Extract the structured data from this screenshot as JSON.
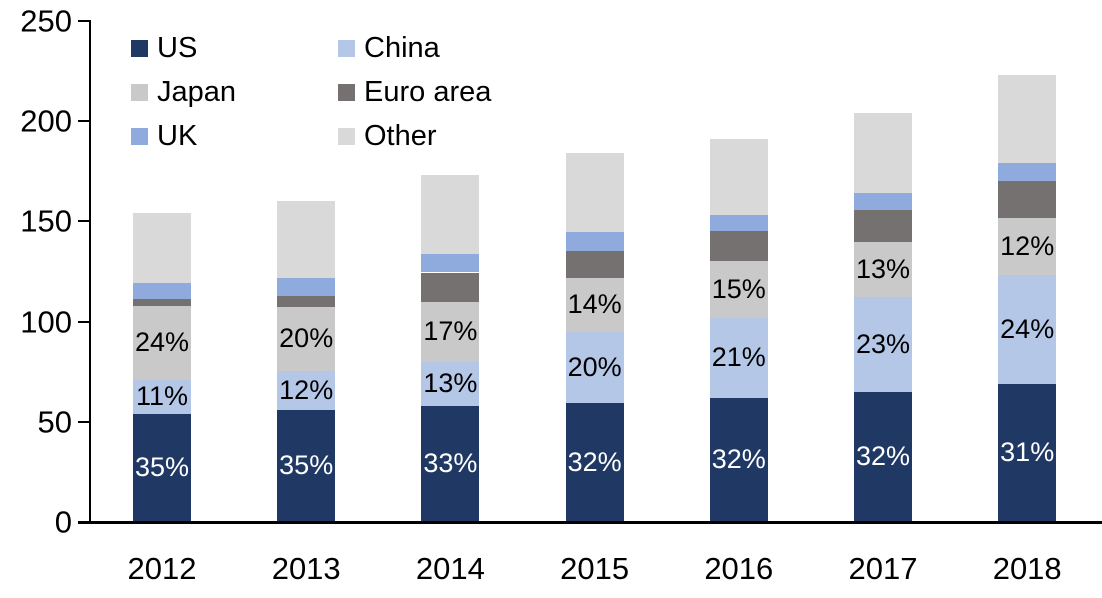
{
  "chart_data": {
    "type": "bar",
    "stacked": true,
    "title": "",
    "xlabel": "",
    "ylabel": "",
    "x": [
      "2012",
      "2013",
      "2014",
      "2015",
      "2016",
      "2017",
      "2018"
    ],
    "series": [
      {
        "name": "US",
        "color": "#1F3864",
        "values": [
          54,
          56,
          58,
          59.5,
          62,
          65,
          69
        ],
        "labels": [
          "35%",
          "35%",
          "33%",
          "32%",
          "32%",
          "32%",
          "31%"
        ],
        "label_color": "#FFFFFF"
      },
      {
        "name": "China",
        "color": "#B4C7E7",
        "values": [
          17,
          19.5,
          22,
          35.5,
          40,
          47.5,
          54.5
        ],
        "labels": [
          "11%",
          "12%",
          "13%",
          "20%",
          "21%",
          "23%",
          "24%"
        ],
        "label_color": "#000000"
      },
      {
        "name": "Japan",
        "color": "#C9C9C9",
        "values": [
          37,
          32,
          30,
          27,
          28,
          27,
          28
        ],
        "labels": [
          "24%",
          "20%",
          "17%",
          "14%",
          "15%",
          "13%",
          "12%"
        ],
        "label_color": "#000000"
      },
      {
        "name": "Euro area",
        "color": "#767171",
        "values": [
          3.5,
          5.5,
          14.5,
          13,
          15,
          16,
          18.5
        ]
      },
      {
        "name": "UK",
        "color": "#8FAADC",
        "values": [
          8,
          9,
          9,
          9.5,
          8,
          8.5,
          9
        ]
      },
      {
        "name": "Other",
        "color": "#D9D9D9",
        "values": [
          34.5,
          38,
          39.5,
          39.5,
          38,
          40,
          44
        ]
      }
    ],
    "totals": [
      154,
      160,
      173,
      184,
      191,
      204,
      223
    ],
    "ylim": [
      0,
      250
    ],
    "yticks": [
      "0",
      "50",
      "100",
      "150",
      "200",
      "250"
    ],
    "legend_position": "top-left",
    "grid": false,
    "axis_color": "#000000",
    "background_color": "#FFFFFF"
  }
}
